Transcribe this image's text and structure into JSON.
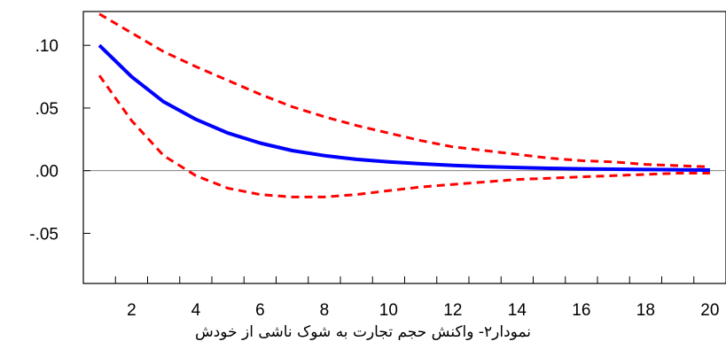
{
  "chart_data": {
    "type": "line",
    "caption": "نمودار۲- واکنش حجم تجارت به شوک ناشی از خودش",
    "x": [
      1,
      2,
      3,
      4,
      5,
      6,
      7,
      8,
      9,
      10,
      11,
      12,
      13,
      14,
      15,
      16,
      17,
      18,
      19,
      20
    ],
    "xlim": [
      0.5,
      20.5
    ],
    "ylim": [
      -0.09,
      0.127
    ],
    "x_ticks": [
      2,
      4,
      6,
      8,
      10,
      12,
      14,
      16,
      18,
      20
    ],
    "x_tick_labels": [
      "2",
      "4",
      "6",
      "8",
      "10",
      "12",
      "14",
      "16",
      "18",
      "20"
    ],
    "y_ticks": [
      0.1,
      0.05,
      0.0,
      -0.05
    ],
    "y_tick_labels": [
      ".10",
      ".05",
      ".00",
      "-.05"
    ],
    "zero_line": true,
    "grid": false,
    "series": [
      {
        "role": "response",
        "color": "#0000ff",
        "style": "solid",
        "values": [
          0.1,
          0.075,
          0.055,
          0.041,
          0.03,
          0.022,
          0.016,
          0.012,
          0.009,
          0.007,
          0.0055,
          0.0042,
          0.0032,
          0.0025,
          0.0019,
          0.0015,
          0.0012,
          0.0009,
          0.0007,
          0.0005
        ]
      },
      {
        "role": "upper-band",
        "color": "#ff0000",
        "style": "dashed",
        "values": [
          0.125,
          0.11,
          0.095,
          0.083,
          0.072,
          0.061,
          0.051,
          0.043,
          0.036,
          0.03,
          0.024,
          0.019,
          0.016,
          0.013,
          0.01,
          0.008,
          0.007,
          0.005,
          0.004,
          0.003
        ]
      },
      {
        "role": "lower-band",
        "color": "#ff0000",
        "style": "dashed",
        "values": [
          0.076,
          0.04,
          0.012,
          -0.004,
          -0.014,
          -0.019,
          -0.021,
          -0.021,
          -0.019,
          -0.016,
          -0.013,
          -0.011,
          -0.009,
          -0.007,
          -0.006,
          -0.005,
          -0.004,
          -0.003,
          -0.002,
          -0.002
        ]
      }
    ]
  }
}
